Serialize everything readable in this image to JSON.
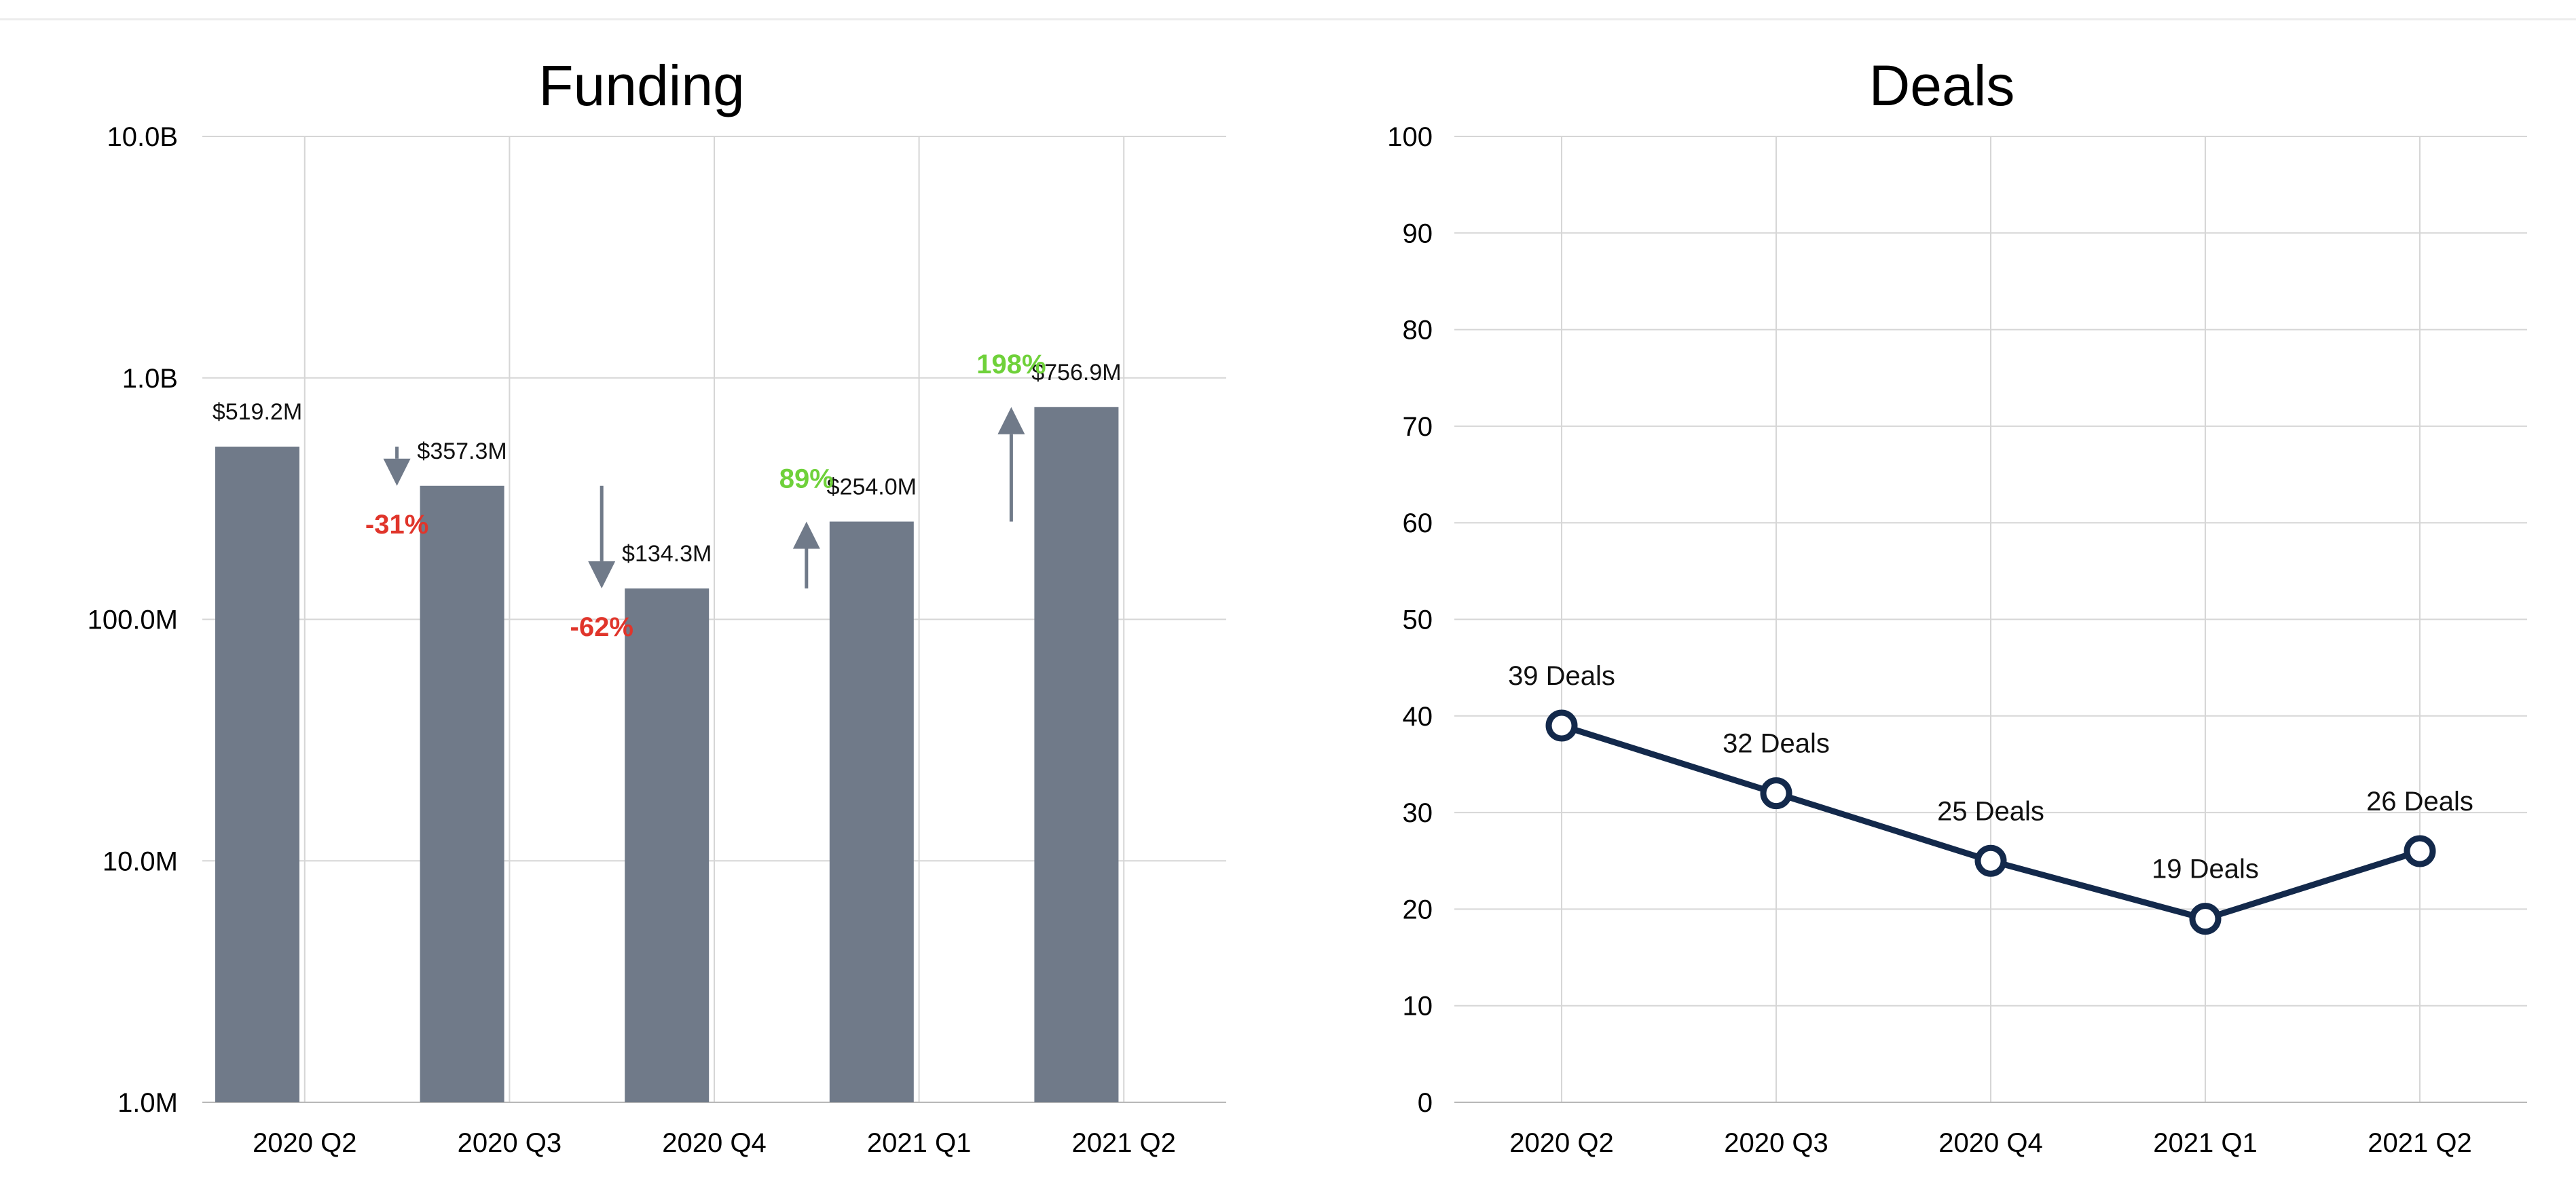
{
  "chart_data": [
    {
      "type": "bar",
      "title": "Funding",
      "scale": "log",
      "ylim": [
        1000000,
        10000000000
      ],
      "y_ticks": [
        "10.0B",
        "1.0B",
        "100.0M",
        "10.0M",
        "1.0M"
      ],
      "categories": [
        "2020 Q2",
        "2020 Q3",
        "2020 Q4",
        "2021 Q1",
        "2021 Q2"
      ],
      "values": [
        519200000,
        357300000,
        134300000,
        254000000,
        756900000
      ],
      "value_labels": [
        "$519.2M",
        "$357.3M",
        "$134.3M",
        "$254.0M",
        "$756.9M"
      ],
      "changes": [
        {
          "label": "-31%",
          "direction": "down",
          "from": 519200000,
          "to": 357300000
        },
        {
          "label": "-62%",
          "direction": "down",
          "from": 357300000,
          "to": 134300000
        },
        {
          "label": "89%",
          "direction": "up",
          "from": 134300000,
          "to": 254000000
        },
        {
          "label": "198%",
          "direction": "up",
          "from": 254000000,
          "to": 756900000
        }
      ],
      "colors": {
        "bar": "#707a89",
        "down": "#e0352b",
        "up": "#6fd13a",
        "arrow": "#707a89",
        "grid": "#d6d6d6"
      },
      "grid": true
    },
    {
      "type": "line",
      "title": "Deals",
      "ylim": [
        0,
        100
      ],
      "y_ticks": [
        "100",
        "90",
        "80",
        "70",
        "60",
        "50",
        "40",
        "30",
        "20",
        "10",
        "0"
      ],
      "categories": [
        "2020 Q2",
        "2020 Q3",
        "2020 Q4",
        "2021 Q1",
        "2021 Q2"
      ],
      "values": [
        39,
        32,
        25,
        19,
        26
      ],
      "point_labels": [
        "39 Deals",
        "32 Deals",
        "25 Deals",
        "19 Deals",
        "26 Deals"
      ],
      "colors": {
        "line": "#13294b",
        "marker_fill": "#ffffff",
        "grid": "#d6d6d6"
      },
      "grid": true
    }
  ]
}
